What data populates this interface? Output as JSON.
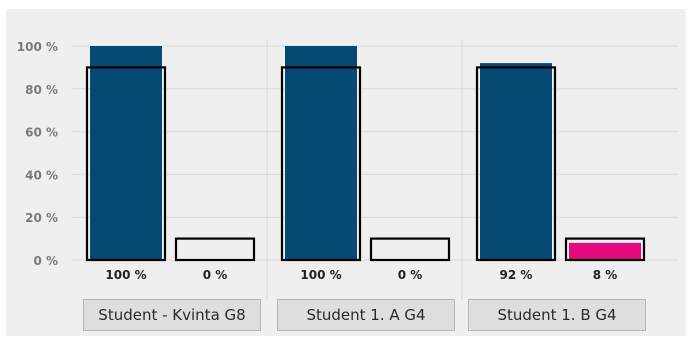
{
  "colors": {
    "background": "#efefef",
    "grid": "#d9d9d9",
    "series_primary": "#064a73",
    "series_secondary": "#e20a7d",
    "target_outline": "#000000",
    "tick_text": "#7a7a7a",
    "label_text": "#222222"
  },
  "chart_data": {
    "type": "bar",
    "categories": [
      "Student - Kvinta G8",
      "Student 1. A G4",
      "Student 1. B G4"
    ],
    "series": [
      {
        "values": [
          100,
          100,
          92
        ],
        "color": "#064a73",
        "labels": [
          "100 %",
          "100 %",
          "92 %"
        ]
      },
      {
        "values": [
          0,
          0,
          8
        ],
        "color": "#e20a7d",
        "labels": [
          "0 %",
          "0 %",
          "8 %"
        ]
      }
    ],
    "target_boxes": [
      [
        90,
        10
      ],
      [
        90,
        10
      ],
      [
        90,
        10
      ]
    ],
    "yticks": [
      {
        "value": 0,
        "label": "0 %"
      },
      {
        "value": 20,
        "label": "20 %"
      },
      {
        "value": 40,
        "label": "40 %"
      },
      {
        "value": 60,
        "label": "60 %"
      },
      {
        "value": 80,
        "label": "80 %"
      },
      {
        "value": 100,
        "label": "100 %"
      }
    ],
    "ylim": [
      0,
      100
    ],
    "grid": true
  }
}
